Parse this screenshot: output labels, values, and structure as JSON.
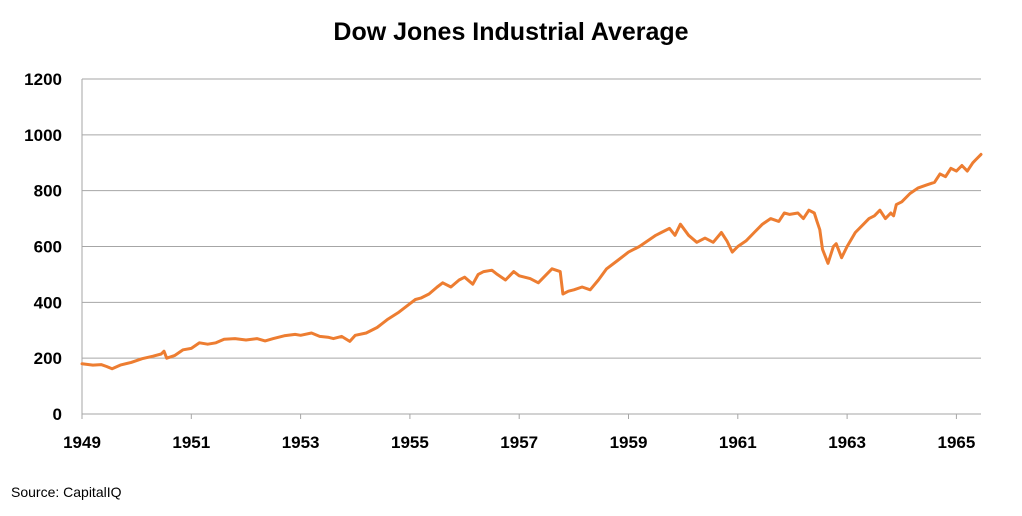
{
  "chart_data": {
    "type": "line",
    "title": "Dow Jones Industrial Average",
    "xlabel": "",
    "ylabel": "",
    "x_ticks": [
      "1949",
      "1951",
      "1953",
      "1955",
      "1957",
      "1959",
      "1961",
      "1963",
      "1965"
    ],
    "y_ticks": [
      "0",
      "200",
      "400",
      "600",
      "800",
      "1000",
      "1200"
    ],
    "xlim": [
      1949.0,
      1965.45
    ],
    "ylim": [
      0,
      1200
    ],
    "grid": true,
    "legend": "none",
    "series": [
      {
        "color": "#ed7d31",
        "x": [
          1949.0,
          1949.2,
          1949.35,
          1949.45,
          1949.55,
          1949.7,
          1949.9,
          1950.1,
          1950.3,
          1950.45,
          1950.5,
          1950.55,
          1950.7,
          1950.85,
          1951.0,
          1951.15,
          1951.3,
          1951.45,
          1951.6,
          1951.8,
          1952.0,
          1952.2,
          1952.35,
          1952.5,
          1952.7,
          1952.9,
          1953.0,
          1953.2,
          1953.35,
          1953.5,
          1953.6,
          1953.75,
          1953.9,
          1954.0,
          1954.2,
          1954.4,
          1954.6,
          1954.8,
          1955.0,
          1955.1,
          1955.2,
          1955.35,
          1955.5,
          1955.6,
          1955.75,
          1955.9,
          1956.0,
          1956.15,
          1956.25,
          1956.35,
          1956.5,
          1956.6,
          1956.75,
          1956.9,
          1957.0,
          1957.2,
          1957.35,
          1957.5,
          1957.6,
          1957.75,
          1957.8,
          1957.9,
          1958.0,
          1958.15,
          1958.3,
          1958.45,
          1958.6,
          1958.8,
          1959.0,
          1959.2,
          1959.35,
          1959.5,
          1959.6,
          1959.75,
          1959.85,
          1959.95,
          1960.1,
          1960.25,
          1960.4,
          1960.55,
          1960.7,
          1960.8,
          1960.9,
          1961.0,
          1961.15,
          1961.3,
          1961.45,
          1961.6,
          1961.75,
          1961.85,
          1961.95,
          1962.1,
          1962.2,
          1962.3,
          1962.4,
          1962.45,
          1962.5,
          1962.55,
          1962.65,
          1962.75,
          1962.8,
          1962.9,
          1963.0,
          1963.15,
          1963.3,
          1963.4,
          1963.5,
          1963.6,
          1963.7,
          1963.8,
          1963.85,
          1963.9,
          1964.0,
          1964.15,
          1964.3,
          1964.45,
          1964.6,
          1964.7,
          1964.8,
          1964.9,
          1965.0,
          1965.1,
          1965.2,
          1965.3,
          1965.35,
          1965.45
        ],
        "values": [
          180,
          175,
          177,
          170,
          162,
          175,
          185,
          198,
          207,
          215,
          225,
          200,
          210,
          230,
          235,
          255,
          250,
          255,
          268,
          270,
          265,
          270,
          262,
          270,
          280,
          285,
          282,
          290,
          278,
          275,
          270,
          278,
          260,
          282,
          290,
          310,
          340,
          365,
          395,
          410,
          415,
          430,
          455,
          470,
          455,
          480,
          490,
          465,
          500,
          510,
          515,
          500,
          480,
          510,
          495,
          485,
          470,
          500,
          520,
          510,
          430,
          440,
          445,
          455,
          445,
          480,
          520,
          550,
          580,
          600,
          620,
          640,
          650,
          665,
          640,
          680,
          640,
          615,
          630,
          615,
          650,
          620,
          580,
          600,
          620,
          650,
          680,
          700,
          690,
          720,
          715,
          720,
          700,
          730,
          720,
          690,
          660,
          590,
          540,
          600,
          610,
          560,
          600,
          650,
          680,
          700,
          710,
          730,
          700,
          720,
          710,
          750,
          760,
          790,
          810,
          820,
          830,
          860,
          850,
          880,
          870,
          890,
          870,
          900,
          910,
          930
        ]
      }
    ]
  },
  "footer": {
    "source": "Source: CapitalIQ"
  }
}
